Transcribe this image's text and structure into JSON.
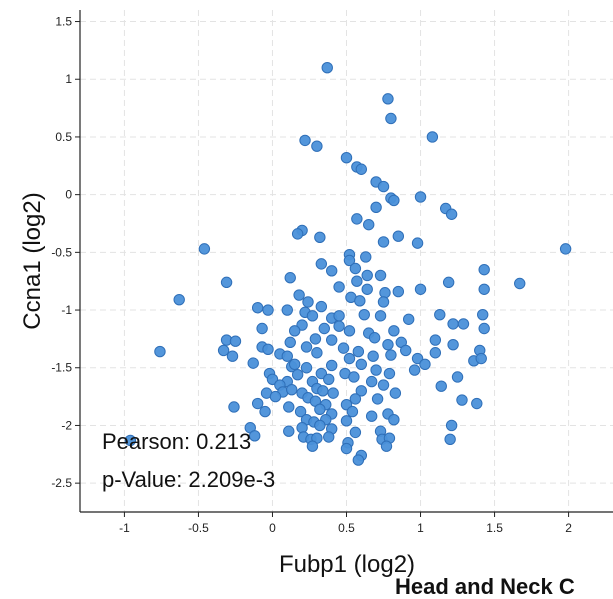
{
  "chart_data": {
    "type": "scatter",
    "xlabel": "Fubp1 (log2)",
    "ylabel": "Ccna1 (log2)",
    "xlim": [
      -1.3,
      2.3
    ],
    "ylim": [
      -2.75,
      1.6
    ],
    "x_ticks": [
      -1,
      -0.5,
      0,
      0.5,
      1,
      1.5,
      2
    ],
    "x_tick_labels": [
      "-1",
      "-0.5",
      "0",
      "0.5",
      "1",
      "1.5",
      "2"
    ],
    "y_ticks": [
      1.5,
      1,
      0.5,
      0,
      -0.5,
      -1,
      -1.5,
      -2,
      -2.5
    ],
    "y_tick_labels": [
      "1.5",
      "1",
      "0.5",
      "0",
      "-0.5",
      "-1",
      "-1.5",
      "-2",
      "-2.5"
    ],
    "grid": true,
    "marker_color": "#4a90d9",
    "marker_edge_color": "#2f6fb8",
    "annotations": {
      "pearson": "Pearson: 0.213",
      "pvalue": "p-Value: 2.209e-3"
    },
    "points": [
      [
        0.37,
        1.1
      ],
      [
        0.78,
        0.83
      ],
      [
        0.8,
        0.66
      ],
      [
        1.08,
        0.5
      ],
      [
        0.22,
        0.47
      ],
      [
        0.3,
        0.42
      ],
      [
        0.5,
        0.32
      ],
      [
        0.57,
        0.24
      ],
      [
        0.6,
        0.22
      ],
      [
        0.7,
        0.11
      ],
      [
        0.75,
        0.07
      ],
      [
        0.8,
        -0.03
      ],
      [
        0.82,
        -0.05
      ],
      [
        0.7,
        -0.11
      ],
      [
        1.0,
        -0.02
      ],
      [
        1.17,
        -0.12
      ],
      [
        1.21,
        -0.17
      ],
      [
        0.57,
        -0.21
      ],
      [
        0.65,
        -0.26
      ],
      [
        0.2,
        -0.31
      ],
      [
        0.17,
        -0.34
      ],
      [
        0.32,
        -0.37
      ],
      [
        0.85,
        -0.36
      ],
      [
        0.75,
        -0.41
      ],
      [
        0.98,
        -0.42
      ],
      [
        1.98,
        -0.47
      ],
      [
        -0.46,
        -0.47
      ],
      [
        0.52,
        -0.52
      ],
      [
        0.52,
        -0.57
      ],
      [
        0.63,
        -0.54
      ],
      [
        0.33,
        -0.6
      ],
      [
        0.4,
        -0.66
      ],
      [
        0.56,
        -0.64
      ],
      [
        0.12,
        -0.72
      ],
      [
        -0.31,
        -0.76
      ],
      [
        0.64,
        -0.7
      ],
      [
        0.57,
        -0.75
      ],
      [
        0.73,
        -0.7
      ],
      [
        1.43,
        -0.65
      ],
      [
        1.19,
        -0.76
      ],
      [
        1.43,
        -0.82
      ],
      [
        1.67,
        -0.77
      ],
      [
        0.45,
        -0.8
      ],
      [
        0.64,
        -0.82
      ],
      [
        0.76,
        -0.85
      ],
      [
        0.85,
        -0.84
      ],
      [
        1.0,
        -0.82
      ],
      [
        -0.63,
        -0.91
      ],
      [
        0.18,
        -0.87
      ],
      [
        0.24,
        -0.93
      ],
      [
        0.53,
        -0.89
      ],
      [
        0.59,
        -0.92
      ],
      [
        0.75,
        -0.93
      ],
      [
        0.33,
        -0.97
      ],
      [
        -0.1,
        -0.98
      ],
      [
        -0.03,
        -1.0
      ],
      [
        0.1,
        -1.0
      ],
      [
        0.22,
        -1.02
      ],
      [
        0.27,
        -1.05
      ],
      [
        0.4,
        -1.07
      ],
      [
        0.45,
        -1.05
      ],
      [
        0.62,
        -1.04
      ],
      [
        0.73,
        -1.05
      ],
      [
        0.92,
        -1.08
      ],
      [
        1.13,
        -1.04
      ],
      [
        1.42,
        -1.04
      ],
      [
        1.22,
        -1.12
      ],
      [
        0.2,
        -1.13
      ],
      [
        0.35,
        -1.16
      ],
      [
        0.45,
        -1.14
      ],
      [
        0.15,
        -1.18
      ],
      [
        -0.07,
        -1.16
      ],
      [
        0.52,
        -1.18
      ],
      [
        0.65,
        -1.2
      ],
      [
        0.82,
        -1.18
      ],
      [
        1.29,
        -1.12
      ],
      [
        1.43,
        -1.16
      ],
      [
        -0.31,
        -1.26
      ],
      [
        -0.25,
        -1.27
      ],
      [
        0.29,
        -1.25
      ],
      [
        0.4,
        -1.26
      ],
      [
        0.12,
        -1.28
      ],
      [
        0.69,
        -1.24
      ],
      [
        0.78,
        -1.3
      ],
      [
        0.87,
        -1.28
      ],
      [
        1.1,
        -1.26
      ],
      [
        1.22,
        -1.3
      ],
      [
        -0.07,
        -1.32
      ],
      [
        -0.33,
        -1.35
      ],
      [
        -0.03,
        -1.34
      ],
      [
        0.23,
        -1.32
      ],
      [
        0.48,
        -1.33
      ],
      [
        0.58,
        -1.36
      ],
      [
        0.9,
        -1.35
      ],
      [
        1.1,
        -1.37
      ],
      [
        1.4,
        -1.35
      ],
      [
        -0.76,
        -1.36
      ],
      [
        -0.27,
        -1.4
      ],
      [
        0.05,
        -1.38
      ],
      [
        0.1,
        -1.4
      ],
      [
        0.3,
        -1.37
      ],
      [
        0.52,
        -1.42
      ],
      [
        0.68,
        -1.4
      ],
      [
        0.8,
        -1.39
      ],
      [
        0.98,
        -1.42
      ],
      [
        1.36,
        -1.44
      ],
      [
        1.41,
        -1.42
      ],
      [
        -0.13,
        -1.46
      ],
      [
        0.13,
        -1.49
      ],
      [
        0.15,
        -1.47
      ],
      [
        0.23,
        -1.5
      ],
      [
        0.4,
        -1.48
      ],
      [
        0.6,
        -1.47
      ],
      [
        0.7,
        -1.52
      ],
      [
        0.96,
        -1.52
      ],
      [
        1.03,
        -1.47
      ],
      [
        -0.02,
        -1.55
      ],
      [
        0.17,
        -1.56
      ],
      [
        0.33,
        -1.55
      ],
      [
        0.49,
        -1.55
      ],
      [
        0.55,
        -1.58
      ],
      [
        0.79,
        -1.55
      ],
      [
        1.25,
        -1.58
      ],
      [
        0.0,
        -1.6
      ],
      [
        0.1,
        -1.62
      ],
      [
        0.27,
        -1.62
      ],
      [
        0.38,
        -1.6
      ],
      [
        0.67,
        -1.62
      ],
      [
        1.14,
        -1.66
      ],
      [
        0.75,
        -1.65
      ],
      [
        0.05,
        -1.65
      ],
      [
        0.3,
        -1.68
      ],
      [
        -0.04,
        -1.72
      ],
      [
        0.07,
        -1.71
      ],
      [
        0.13,
        -1.69
      ],
      [
        0.2,
        -1.72
      ],
      [
        0.34,
        -1.7
      ],
      [
        0.41,
        -1.72
      ],
      [
        0.6,
        -1.7
      ],
      [
        0.83,
        -1.72
      ],
      [
        0.02,
        -1.75
      ],
      [
        0.24,
        -1.76
      ],
      [
        0.29,
        -1.79
      ],
      [
        0.56,
        -1.77
      ],
      [
        0.71,
        -1.77
      ],
      [
        1.28,
        -1.78
      ],
      [
        1.38,
        -1.81
      ],
      [
        -0.1,
        -1.81
      ],
      [
        0.11,
        -1.84
      ],
      [
        0.36,
        -1.82
      ],
      [
        0.5,
        -1.82
      ],
      [
        -0.26,
        -1.84
      ],
      [
        -0.05,
        -1.88
      ],
      [
        0.19,
        -1.88
      ],
      [
        0.32,
        -1.86
      ],
      [
        0.4,
        -1.9
      ],
      [
        0.54,
        -1.88
      ],
      [
        0.78,
        -1.9
      ],
      [
        0.23,
        -1.95
      ],
      [
        0.28,
        -1.97
      ],
      [
        0.36,
        -1.95
      ],
      [
        0.5,
        -1.96
      ],
      [
        0.67,
        -1.92
      ],
      [
        0.82,
        -1.95
      ],
      [
        -0.15,
        -2.02
      ],
      [
        0.11,
        -2.05
      ],
      [
        0.2,
        -2.02
      ],
      [
        0.32,
        -2.0
      ],
      [
        0.4,
        -2.03
      ],
      [
        0.56,
        -2.06
      ],
      [
        0.73,
        -2.05
      ],
      [
        1.21,
        -2.0
      ],
      [
        -0.96,
        -2.13
      ],
      [
        -0.12,
        -2.09
      ],
      [
        0.21,
        -2.1
      ],
      [
        0.26,
        -2.12
      ],
      [
        0.3,
        -2.11
      ],
      [
        0.38,
        -2.1
      ],
      [
        0.51,
        -2.15
      ],
      [
        0.74,
        -2.12
      ],
      [
        0.79,
        -2.11
      ],
      [
        1.2,
        -2.12
      ],
      [
        0.27,
        -2.18
      ],
      [
        0.5,
        -2.2
      ],
      [
        0.6,
        -2.26
      ],
      [
        0.77,
        -2.18
      ],
      [
        0.58,
        -2.3
      ]
    ]
  },
  "caption_fragment": "Head and Neck C"
}
